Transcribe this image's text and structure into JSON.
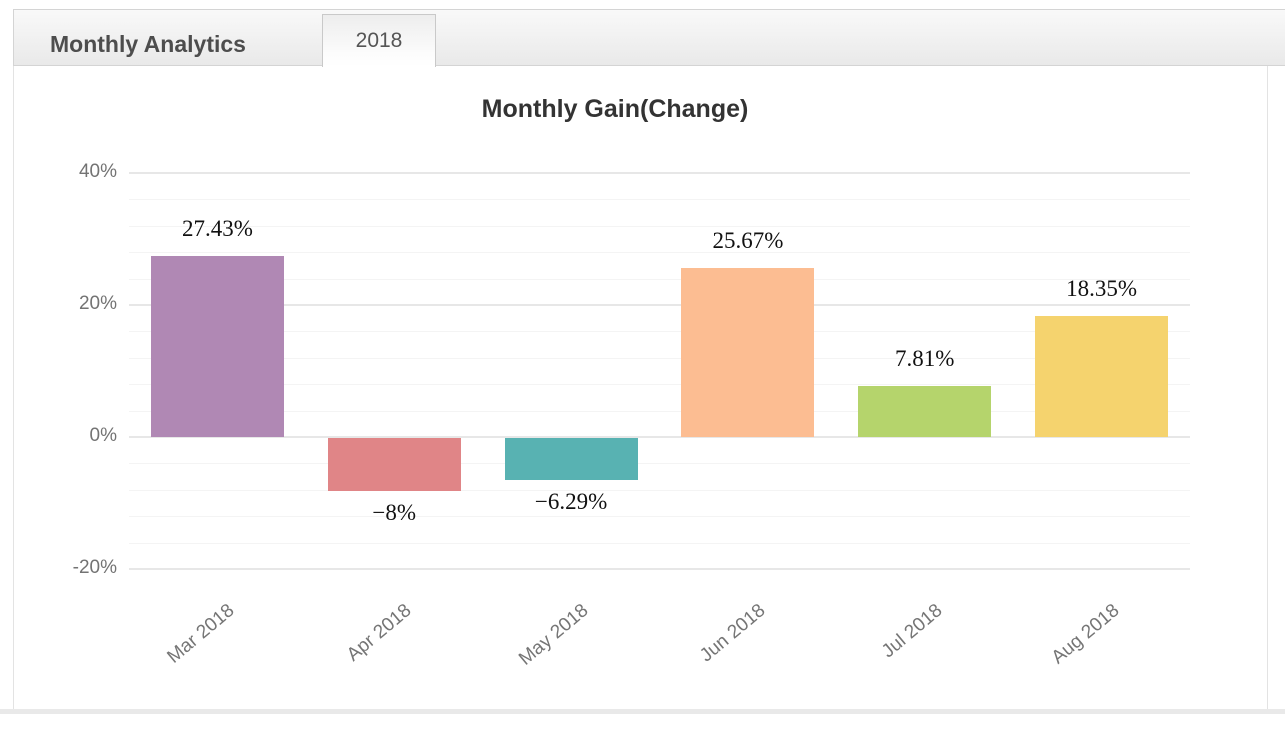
{
  "header": {
    "title": "Monthly Analytics",
    "tab_label": "2018"
  },
  "chart_data": {
    "type": "bar",
    "title": "Monthly Gain(Change)",
    "categories": [
      "Mar 2018",
      "Apr 2018",
      "May 2018",
      "Jun 2018",
      "Jul 2018",
      "Aug 2018"
    ],
    "values": [
      27.43,
      -8,
      -6.29,
      25.67,
      7.81,
      18.35
    ],
    "value_labels": [
      "27.43%",
      "−8%",
      "−6.29%",
      "25.67%",
      "7.81%",
      "18.35%"
    ],
    "bar_colors": [
      "#b088b4",
      "#e08587",
      "#58b2b2",
      "#fcbd92",
      "#b5d46c",
      "#f5d36e"
    ],
    "xlabel": "",
    "ylabel": "",
    "y_axis": {
      "tick_labels": [
        "40%",
        "20%",
        "0%",
        "-20%"
      ],
      "tick_values": [
        40,
        20,
        0,
        -20
      ],
      "min": -20,
      "max": 40,
      "minor_step": 4
    },
    "grid": true,
    "legend_position": "none"
  }
}
